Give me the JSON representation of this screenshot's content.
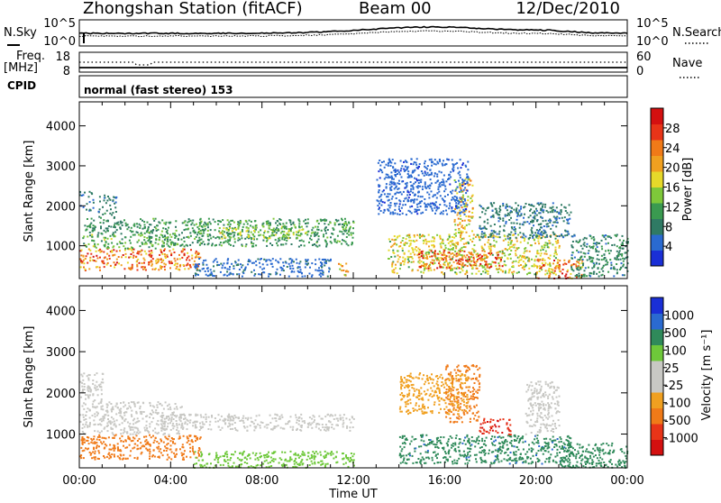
{
  "header": {
    "station": "Zhongshan Station (fitACF)",
    "beam": "Beam 00",
    "date": "12/Dec/2010",
    "cpid_text": "normal (fast stereo) 153"
  },
  "side_labels": {
    "nsky": "N.Sky",
    "freq": "Freq.",
    "freq_unit": "[MHz]",
    "cpid": "CPID",
    "nsearch": "N.Search",
    "nave": "Nave"
  },
  "noise_axis": {
    "left_top": "10^5",
    "left_bottom": "10^0",
    "right_top": "10^5",
    "right_bottom": "10^0"
  },
  "freq_axis": {
    "left_top": "18",
    "left_bottom": "8",
    "right_top": "60",
    "right_bottom": "0"
  },
  "colors": {
    "power": [
      "#1a2fd6",
      "#2a6ad0",
      "#2f7a64",
      "#3a9a50",
      "#7ec83a",
      "#e6d92a",
      "#f0a020",
      "#f07a18",
      "#e83418",
      "#d41010"
    ],
    "velocity": [
      "#d41010",
      "#e83418",
      "#f07a18",
      "#f0a020",
      "#c8c8c4",
      "#c8c8c4",
      "#6ec83a",
      "#2f8a5a",
      "#2a6ad0",
      "#1a2fd6"
    ]
  },
  "chart_data": [
    {
      "type": "heatmap",
      "title": "Power",
      "xlabel": "Time UT",
      "ylabel": "Slant Range [km]",
      "x_ticks": [
        "00:00",
        "04:00",
        "08:00",
        "12:00",
        "16:00",
        "20:00",
        "00:00"
      ],
      "y_ticks": [
        "1000",
        "2000",
        "3000",
        "4000"
      ],
      "ylim": [
        180,
        4600
      ],
      "colorbar": {
        "label": "Power [dB]",
        "ticks": [
          "4",
          "8",
          "12",
          "16",
          "20",
          "24",
          "28"
        ],
        "range": [
          0,
          30
        ]
      },
      "blobs": [
        {
          "t0": 0.0,
          "t1": 5.3,
          "r0": 400,
          "r1": 950,
          "v": 22
        },
        {
          "t0": 0.1,
          "t1": 4.0,
          "r0": 950,
          "r1": 1300,
          "v": 12
        },
        {
          "t0": 0.2,
          "t1": 3.0,
          "r0": 1300,
          "r1": 1700,
          "v": 9
        },
        {
          "t0": 0.0,
          "t1": 0.6,
          "r0": 1900,
          "r1": 2400,
          "v": 6
        },
        {
          "t0": 0.8,
          "t1": 1.6,
          "r0": 1700,
          "r1": 2300,
          "v": 7
        },
        {
          "t0": 3.0,
          "t1": 12.0,
          "r0": 1000,
          "r1": 1700,
          "v": 10
        },
        {
          "t0": 6.0,
          "t1": 10.0,
          "r0": 1200,
          "r1": 1500,
          "v": 14
        },
        {
          "t0": 5.0,
          "t1": 11.0,
          "r0": 250,
          "r1": 700,
          "v": 5
        },
        {
          "t0": 11.3,
          "t1": 11.8,
          "r0": 250,
          "r1": 600,
          "v": 18
        },
        {
          "t0": 13.5,
          "t1": 21.0,
          "r0": 300,
          "r1": 1300,
          "v": 16
        },
        {
          "t0": 14.8,
          "t1": 18.5,
          "r0": 450,
          "r1": 900,
          "v": 24
        },
        {
          "t0": 16.4,
          "t1": 17.2,
          "r0": 1300,
          "r1": 2700,
          "v": 18
        },
        {
          "t0": 17.5,
          "t1": 21.5,
          "r0": 1200,
          "r1": 2100,
          "v": 7
        },
        {
          "t0": 20.0,
          "t1": 22.0,
          "r0": 200,
          "r1": 700,
          "v": 22
        },
        {
          "t0": 21.5,
          "t1": 24.0,
          "r0": 250,
          "r1": 1300,
          "v": 8
        },
        {
          "t0": 13.0,
          "t1": 17.0,
          "r0": 1800,
          "r1": 3200,
          "v": 4
        }
      ]
    },
    {
      "type": "heatmap",
      "title": "Velocity",
      "xlabel": "Time UT",
      "ylabel": "Slant Range [km]",
      "x_ticks": [
        "00:00",
        "04:00",
        "08:00",
        "12:00",
        "16:00",
        "20:00",
        "00:00"
      ],
      "y_ticks": [
        "1000",
        "2000",
        "3000",
        "4000"
      ],
      "ylim": [
        180,
        4600
      ],
      "colorbar": {
        "label": "Velocity [m s⁻¹]",
        "ticks": [
          "-1000",
          "-500",
          "-100",
          "-25",
          "25",
          "100",
          "500",
          "1000"
        ],
        "range": [
          -1200,
          1200
        ]
      },
      "blobs": [
        {
          "t0": 0.0,
          "t1": 5.3,
          "r0": 400,
          "r1": 1000,
          "v": -300
        },
        {
          "t0": 0.0,
          "t1": 4.5,
          "r0": 1000,
          "r1": 1800,
          "v": 0
        },
        {
          "t0": 0.0,
          "t1": 1.0,
          "r0": 1800,
          "r1": 2500,
          "v": 0
        },
        {
          "t0": 3.5,
          "t1": 12.0,
          "r0": 1100,
          "r1": 1500,
          "v": 0
        },
        {
          "t0": 5.0,
          "t1": 12.0,
          "r0": 200,
          "r1": 600,
          "v": 60
        },
        {
          "t0": 14.0,
          "t1": 21.5,
          "r0": 300,
          "r1": 1000,
          "v": 400
        },
        {
          "t0": 16.0,
          "t1": 17.5,
          "r0": 1300,
          "r1": 2700,
          "v": -300
        },
        {
          "t0": 17.5,
          "t1": 19.0,
          "r0": 1000,
          "r1": 1400,
          "v": -900
        },
        {
          "t0": 19.5,
          "t1": 21.0,
          "r0": 1000,
          "r1": 2300,
          "v": 0
        },
        {
          "t0": 21.0,
          "t1": 24.0,
          "r0": 200,
          "r1": 800,
          "v": 150
        },
        {
          "t0": 14.0,
          "t1": 17.0,
          "r0": 1500,
          "r1": 2500,
          "v": -60
        }
      ]
    }
  ]
}
